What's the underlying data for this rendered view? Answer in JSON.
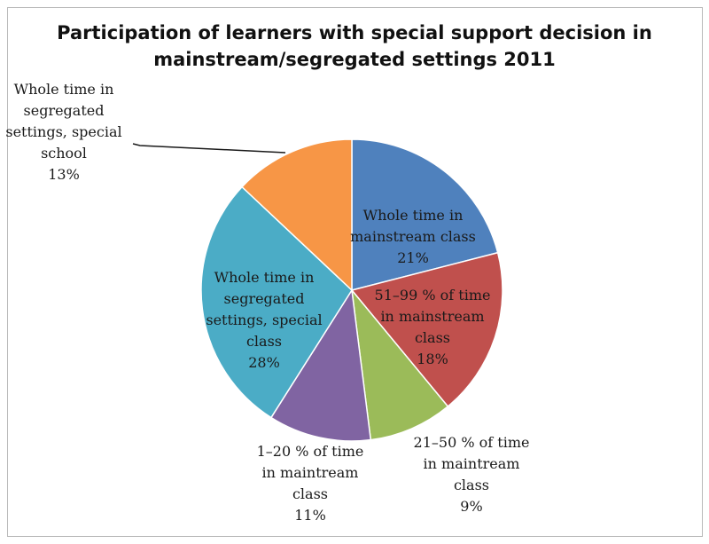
{
  "title": {
    "line1": "Participation of learners with special support decision in",
    "line2": "mainstream/segregated settings 2011"
  },
  "chart_data": {
    "type": "pie",
    "title": "Participation of learners with special support decision in mainstream/segregated settings 2011",
    "slices": [
      {
        "label": [
          "Whole time in",
          "mainstream class"
        ],
        "value": 21,
        "percent_label": "21%",
        "color": "#4f81bd"
      },
      {
        "label": [
          "51–99 % of time",
          "in mainstream",
          "class"
        ],
        "value": 18,
        "percent_label": "18%",
        "color": "#c0504d"
      },
      {
        "label": [
          "21–50 % of time",
          "in maintream",
          "class"
        ],
        "value": 9,
        "percent_label": "9%",
        "color": "#9bbb59"
      },
      {
        "label": [
          "1–20 % of time",
          "in maintream",
          "class"
        ],
        "value": 11,
        "percent_label": "11%",
        "color": "#8064a2"
      },
      {
        "label": [
          "Whole time in",
          "segregated",
          "settings, special",
          "class"
        ],
        "value": 28,
        "percent_label": "28%",
        "color": "#4bacc6"
      },
      {
        "label": [
          "Whole time in",
          "segregated",
          "settings, special",
          "school"
        ],
        "value": 13,
        "percent_label": "13%",
        "color": "#f79646"
      }
    ],
    "start_angle": "12 o'clock",
    "direction": "clockwise",
    "legend": "none"
  }
}
